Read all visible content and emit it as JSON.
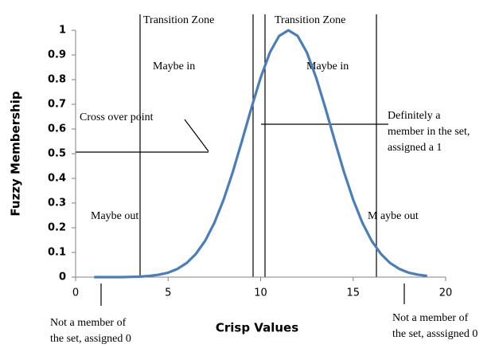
{
  "chart_data": {
    "type": "line",
    "xlabel": "Crisp Values",
    "ylabel": "Fuzzy Membership",
    "xlim": [
      0,
      20
    ],
    "ylim": [
      0,
      1
    ],
    "xticks": [
      0,
      5,
      10,
      15,
      20
    ],
    "yticks": [
      0,
      0.1,
      0.2,
      0.3,
      0.4,
      0.5,
      0.6,
      0.7,
      0.8,
      0.9,
      1
    ],
    "grid": false,
    "series": [
      {
        "color": "#4a7ebb",
        "x": [
          1,
          1.5,
          2,
          2.5,
          3,
          3.5,
          4,
          4.5,
          5,
          5.5,
          6,
          6.5,
          7,
          7.5,
          8,
          8.5,
          9,
          9.5,
          10,
          10.5,
          11,
          11.5,
          12,
          12.5,
          13,
          13.5,
          14,
          14.5,
          15,
          15.5,
          16,
          16.5,
          17,
          17.5,
          18,
          18.5,
          19
        ],
        "values": [
          0,
          0,
          0,
          0,
          0.001,
          0.002,
          0.005,
          0.01,
          0.018,
          0.033,
          0.057,
          0.094,
          0.147,
          0.22,
          0.314,
          0.427,
          0.554,
          0.685,
          0.808,
          0.91,
          0.977,
          1,
          0.977,
          0.91,
          0.808,
          0.685,
          0.554,
          0.427,
          0.314,
          0.22,
          0.147,
          0.094,
          0.057,
          0.033,
          0.018,
          0.01,
          0.005
        ]
      }
    ],
    "annotations": [
      "Transition Zone",
      "Transition Zone",
      "Maybe in",
      "Maybe in",
      "Cross over point",
      "Definitely a",
      "member in the set,",
      "assigned a 1",
      "Maybe out",
      "M aybe out",
      "Not a member of",
      "the set, assigned 0",
      "Not a member of",
      "the set, asssigned 0"
    ]
  }
}
